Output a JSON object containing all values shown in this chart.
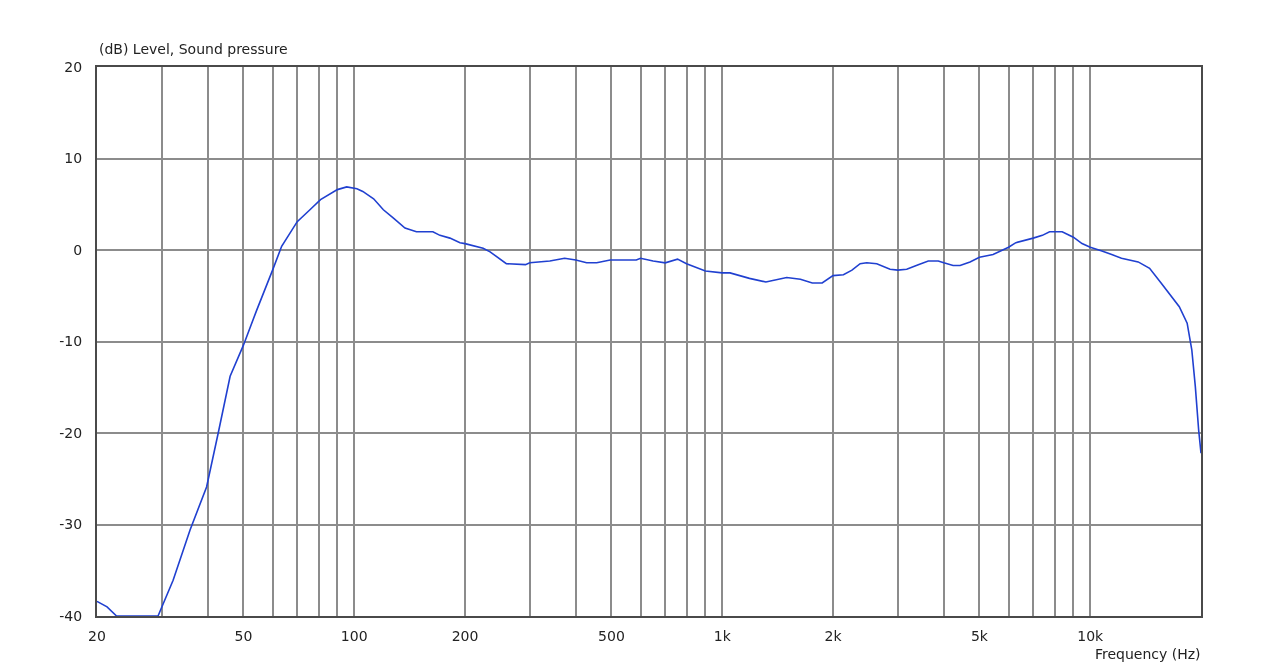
{
  "chart_data": {
    "type": "line",
    "xlabel": "Frequency (Hz)",
    "ylabel": "(dB) Level, Sound pressure",
    "x": [
      20,
      21.3,
      22.6,
      29.3,
      32.2,
      35.8,
      39.7,
      42.7,
      46,
      50,
      54.3,
      60,
      63.5,
      70,
      75.8,
      81,
      90,
      95.4,
      101.7,
      105.5,
      112.9,
      120,
      127.6,
      137.4,
      147.6,
      163.6,
      171,
      182,
      193.8,
      200,
      224,
      234,
      259,
      292,
      300,
      340,
      373,
      400,
      428,
      456,
      496,
      584,
      600,
      649,
      700,
      756,
      800,
      900,
      1000,
      1050,
      1186,
      1314,
      1497,
      1631,
      1757,
      1869,
      2000,
      2135,
      2252,
      2370,
      2470,
      2630,
      2858,
      3000,
      3172,
      3410,
      3630,
      3864,
      4000,
      4240,
      4430,
      4714,
      5000,
      5445,
      6000,
      6280,
      7000,
      7412,
      7754,
      8392,
      9000,
      9500,
      10000,
      10760,
      11440,
      12160,
      13500,
      14500,
      15580,
      17460,
      18340,
      18880,
      19300,
      19710,
      20000
    ],
    "series": [
      {
        "color": "#2040d0",
        "values": [
          -38.4,
          -39.0,
          -40,
          -40,
          -36.1,
          -30.6,
          -25.9,
          -20.0,
          -13.8,
          -10.4,
          -6.6,
          -2.2,
          0.4,
          3.1,
          4.4,
          5.5,
          6.6,
          6.9,
          6.7,
          6.4,
          5.6,
          4.4,
          3.5,
          2.4,
          2.0,
          2.0,
          1.6,
          1.3,
          0.8,
          0.7,
          0.2,
          -0.2,
          -1.5,
          -1.6,
          -1.4,
          -1.2,
          -0.9,
          -1.1,
          -1.4,
          -1.4,
          -1.1,
          -1.1,
          -0.9,
          -1.2,
          -1.4,
          -1.0,
          -1.5,
          -2.3,
          -2.5,
          -2.5,
          -3.1,
          -3.5,
          -3.0,
          -3.2,
          -3.6,
          -3.6,
          -2.8,
          -2.7,
          -2.2,
          -1.5,
          -1.4,
          -1.5,
          -2.1,
          -2.2,
          -2.1,
          -1.6,
          -1.2,
          -1.2,
          -1.4,
          -1.7,
          -1.7,
          -1.3,
          -0.8,
          -0.5,
          0.3,
          0.8,
          1.3,
          1.6,
          2.0,
          2.0,
          1.4,
          0.7,
          0.3,
          -0.1,
          -0.5,
          -0.9,
          -1.3,
          -2.0,
          -3.6,
          -6.2,
          -8.0,
          -10.9,
          -14.9,
          -19.7,
          -22.2
        ]
      }
    ],
    "log": "x",
    "xlim": [
      20,
      20000
    ],
    "ylim": [
      -40,
      20
    ],
    "xticks": [
      20,
      {
        "value": 30,
        "label": null
      },
      {
        "value": 40,
        "label": null
      },
      50,
      {
        "value": 60,
        "label": null
      },
      {
        "value": 70,
        "label": null
      },
      {
        "value": 80,
        "label": null
      },
      {
        "value": 90,
        "label": null
      },
      100,
      200,
      {
        "value": 300,
        "label": null
      },
      {
        "value": 400,
        "label": null
      },
      500,
      {
        "value": 600,
        "label": null
      },
      {
        "value": 700,
        "label": null
      },
      {
        "value": 800,
        "label": null
      },
      {
        "value": 900,
        "label": null
      },
      {
        "value": 1000,
        "label": "1k"
      },
      {
        "value": 2000,
        "label": "2k"
      },
      {
        "value": 3000,
        "label": null
      },
      {
        "value": 4000,
        "label": null
      },
      {
        "value": 5000,
        "label": "5k"
      },
      {
        "value": 6000,
        "label": null
      },
      {
        "value": 7000,
        "label": null
      },
      {
        "value": 8000,
        "label": null
      },
      {
        "value": 9000,
        "label": null
      },
      {
        "value": 10000,
        "label": "10k"
      }
    ],
    "yticks": [
      -40,
      -30,
      -20,
      -10,
      0,
      10,
      20
    ],
    "grid": true,
    "line_style": "solid"
  }
}
